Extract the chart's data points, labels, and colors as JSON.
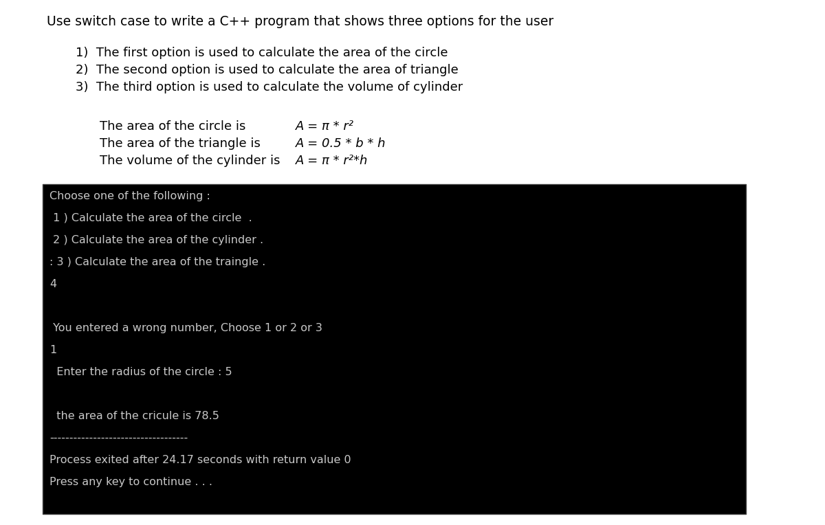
{
  "title": "Use switch case to write a C++ program that shows three options for the user",
  "bullet1": "1)  The first option is used to calculate the area of the circle",
  "bullet2": "2)  The second option is used to calculate the area of triangle",
  "bullet3": "3)  The third option is used to calculate the volume of cylinder",
  "formula_line1_label": "The area of the circle is",
  "formula_line1_eq": "A = π * r²",
  "formula_line2_label": "The area of the triangle is",
  "formula_line2_eq": "A = 0.5 * b * h",
  "formula_line3_label": "The volume of the cylinder is",
  "formula_line3_eq": "A = π * r²*h",
  "terminal_lines": [
    "Choose one of the following :",
    " 1 ) Calculate the area of the circle  .",
    " 2 ) Calculate the area of the cylinder .",
    ": 3 ) Calculate the area of the traingle .",
    "4",
    "",
    " You entered a wrong number, Choose 1 or 2 or 3",
    "1",
    "  Enter the radius of the circle : 5",
    "",
    "  the area of the cricule is 78.5",
    "-----------------------------------",
    "Process exited after 24.17 seconds with return value 0",
    "Press any key to continue . . ."
  ],
  "bg_color": "#ffffff",
  "terminal_bg": "#000000",
  "terminal_fg": "#c8c8c8",
  "title_fontsize": 13.5,
  "body_fontsize": 13,
  "terminal_fontsize": 11.5
}
